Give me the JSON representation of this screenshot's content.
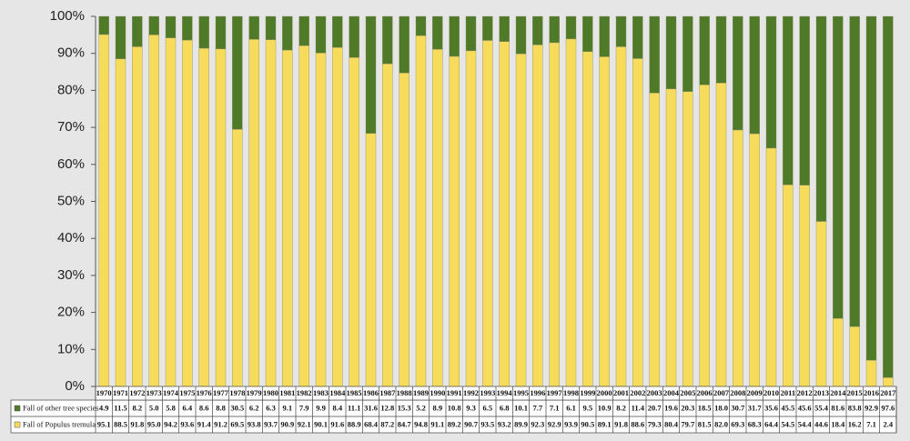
{
  "chart_data": {
    "type": "stacked_bar_100",
    "categories": [
      "1970",
      "1971",
      "1972",
      "1973",
      "1974",
      "1975",
      "1976",
      "1977",
      "1978",
      "1979",
      "1980",
      "1981",
      "1982",
      "1983",
      "1984",
      "1985",
      "1986",
      "1987",
      "1988",
      "1989",
      "1990",
      "1991",
      "1992",
      "1993",
      "1994",
      "1995",
      "1996",
      "1997",
      "1998",
      "1999",
      "2000",
      "2001",
      "2002",
      "2003",
      "2004",
      "2005",
      "2006",
      "2007",
      "2008",
      "2009",
      "2010",
      "2011",
      "2012",
      "2013",
      "2014",
      "2015",
      "2016",
      "2017"
    ],
    "series": [
      {
        "name": "Fall of other tree species",
        "color": "#4f7a28",
        "values": [
          4.9,
          11.5,
          8.2,
          5.0,
          5.8,
          6.4,
          8.6,
          8.8,
          30.5,
          6.2,
          6.3,
          9.1,
          7.9,
          9.9,
          8.4,
          11.1,
          31.6,
          12.8,
          15.3,
          5.2,
          8.9,
          10.8,
          9.3,
          6.5,
          6.8,
          10.1,
          7.7,
          7.1,
          6.1,
          9.5,
          10.9,
          8.2,
          11.4,
          20.7,
          19.6,
          20.3,
          18.5,
          18.0,
          30.7,
          31.7,
          35.6,
          45.5,
          45.6,
          55.4,
          81.6,
          83.8,
          92.9,
          97.6
        ],
        "value_labels": [
          "4.9",
          "11.5",
          "8.2",
          "5.0",
          "5.8",
          "6.4",
          "8.6",
          "8.8",
          "30.5",
          "6.2",
          "6.3",
          "9.1",
          "7.9",
          "9.9",
          "8.4",
          "11.1",
          "31.6",
          "12.8",
          "15.3",
          "5.2",
          "8.9",
          "10.8",
          "9.3",
          "6.5",
          "6.8",
          "10.1",
          "7.7",
          "7.1",
          "6.1",
          "9.5",
          "10.9",
          "8.2",
          "11.4",
          "20.7",
          "19.6",
          "20.3",
          "18.5",
          "18.0",
          "30.7",
          "31.7",
          "35.6",
          "45.5",
          "45.6",
          "55.4",
          "81.6",
          "83.8",
          "92.9",
          "97.6"
        ]
      },
      {
        "name": "Fall of Populus tremula",
        "color": "#f7dc5c",
        "values": [
          95.1,
          88.5,
          91.8,
          95.0,
          94.2,
          93.6,
          91.4,
          91.2,
          69.5,
          93.8,
          93.7,
          90.9,
          92.1,
          90.1,
          91.6,
          88.9,
          68.4,
          87.2,
          84.7,
          94.8,
          91.1,
          89.2,
          90.7,
          93.5,
          93.2,
          89.9,
          92.3,
          92.9,
          93.9,
          90.5,
          89.1,
          91.8,
          88.6,
          79.3,
          80.4,
          79.7,
          81.5,
          82.0,
          69.3,
          68.3,
          64.4,
          54.5,
          54.4,
          44.6,
          18.4,
          16.2,
          7.1,
          2.4
        ],
        "value_labels": [
          "95.1",
          "88.5",
          "91.8",
          "95.0",
          "94.2",
          "93.6",
          "91.4",
          "91.2",
          "69.5",
          "93.8",
          "93.7",
          "90.9",
          "92.1",
          "90.1",
          "91.6",
          "88.9",
          "68.4",
          "87.2",
          "84.7",
          "94.8",
          "91.1",
          "89.2",
          "90.7",
          "93.5",
          "93.2",
          "89.9",
          "92.3",
          "92.9",
          "93.9",
          "90.5",
          "89.1",
          "91.8",
          "88.6",
          "79.3",
          "80.4",
          "79.7",
          "81.5",
          "82.0",
          "69.3",
          "68.3",
          "64.4",
          "54.5",
          "54.4",
          "44.6",
          "18.4",
          "16.2",
          "7.1",
          "2.4"
        ]
      }
    ],
    "ylim": [
      0,
      100
    ],
    "yticks": [
      {
        "value": 0,
        "label": "0%"
      },
      {
        "value": 10,
        "label": "10%"
      },
      {
        "value": 20,
        "label": "20%"
      },
      {
        "value": 30,
        "label": "30%"
      },
      {
        "value": 40,
        "label": "40%"
      },
      {
        "value": 50,
        "label": "50%"
      },
      {
        "value": 60,
        "label": "60%"
      },
      {
        "value": 70,
        "label": "70%"
      },
      {
        "value": 80,
        "label": "80%"
      },
      {
        "value": 90,
        "label": "90%"
      },
      {
        "value": 100,
        "label": "100%"
      }
    ]
  }
}
